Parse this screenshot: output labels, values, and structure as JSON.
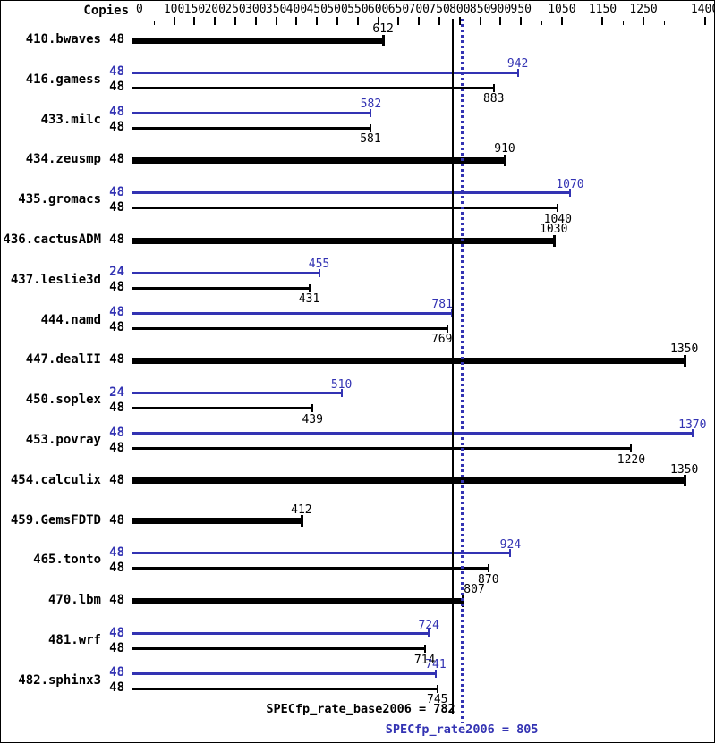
{
  "chart_data": {
    "type": "bar",
    "orientation": "horizontal",
    "xlim": [
      0,
      1400
    ],
    "copies_header": "Copies",
    "axis": {
      "labeled_ticks": [
        0,
        100,
        150,
        200,
        250,
        300,
        350,
        400,
        450,
        500,
        550,
        600,
        650,
        700,
        750,
        800,
        850,
        900,
        950,
        1050,
        1150,
        1250,
        1400
      ],
      "minor_ticks": [
        50,
        1000,
        1100,
        1200,
        1300,
        1350
      ]
    },
    "colors": {
      "base": "#000000",
      "peak": "#3333b3"
    },
    "benchmarks": [
      {
        "name": "410.bwaves",
        "single": true,
        "base": {
          "copies": 48,
          "value": 612
        }
      },
      {
        "name": "416.gamess",
        "single": false,
        "peak": {
          "copies": 48,
          "value": 942
        },
        "base": {
          "copies": 48,
          "value": 883
        }
      },
      {
        "name": "433.milc",
        "single": false,
        "peak": {
          "copies": 48,
          "value": 582
        },
        "base": {
          "copies": 48,
          "value": 581
        }
      },
      {
        "name": "434.zeusmp",
        "single": true,
        "base": {
          "copies": 48,
          "value": 910
        }
      },
      {
        "name": "435.gromacs",
        "single": false,
        "peak": {
          "copies": 48,
          "value": 1070
        },
        "base": {
          "copies": 48,
          "value": 1040
        }
      },
      {
        "name": "436.cactusADM",
        "single": true,
        "base": {
          "copies": 48,
          "value": 1030
        }
      },
      {
        "name": "437.leslie3d",
        "single": false,
        "peak": {
          "copies": 24,
          "value": 455
        },
        "base": {
          "copies": 48,
          "value": 431
        }
      },
      {
        "name": "444.namd",
        "single": false,
        "peak": {
          "copies": 48,
          "value": 781,
          "label_dx": -11
        },
        "base": {
          "copies": 48,
          "value": 769,
          "label_dx": -6
        }
      },
      {
        "name": "447.dealII",
        "single": true,
        "base": {
          "copies": 48,
          "value": 1350
        }
      },
      {
        "name": "450.soplex",
        "single": false,
        "peak": {
          "copies": 24,
          "value": 510
        },
        "base": {
          "copies": 48,
          "value": 439
        }
      },
      {
        "name": "453.povray",
        "single": false,
        "peak": {
          "copies": 48,
          "value": 1370
        },
        "base": {
          "copies": 48,
          "value": 1220
        }
      },
      {
        "name": "454.calculix",
        "single": true,
        "base": {
          "copies": 48,
          "value": 1350
        }
      },
      {
        "name": "459.GemsFDTD",
        "single": true,
        "base": {
          "copies": 48,
          "value": 412
        }
      },
      {
        "name": "465.tonto",
        "single": false,
        "peak": {
          "copies": 48,
          "value": 924
        },
        "base": {
          "copies": 48,
          "value": 870
        }
      },
      {
        "name": "470.lbm",
        "single": true,
        "base": {
          "copies": 48,
          "value": 807,
          "label_dx": 13
        }
      },
      {
        "name": "481.wrf",
        "single": false,
        "peak": {
          "copies": 48,
          "value": 724
        },
        "base": {
          "copies": 48,
          "value": 714
        }
      },
      {
        "name": "482.sphinx3",
        "single": false,
        "peak": {
          "copies": 48,
          "value": 741
        },
        "base": {
          "copies": 48,
          "value": 745
        }
      }
    ],
    "reference_lines": {
      "base_value": 782,
      "peak_value": 805
    },
    "footer": {
      "base_text": "SPECfp_rate_base2006 = 782",
      "peak_text": "SPECfp_rate2006 = 805"
    }
  }
}
